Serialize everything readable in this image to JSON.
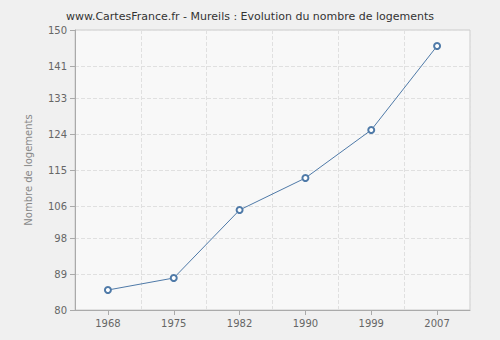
{
  "chart_data": {
    "type": "line",
    "title": "www.CartesFrance.fr - Mureils : Evolution du nombre de logements",
    "ylabel": "Nombre de logements",
    "categories": [
      "1968",
      "1975",
      "1982",
      "1990",
      "1999",
      "2007"
    ],
    "values": [
      85,
      88,
      105,
      113,
      125,
      146
    ],
    "color": "#4f7aa8",
    "marker": "circle",
    "ylim": [
      80,
      150
    ],
    "yticks": [
      80,
      89,
      98,
      106,
      115,
      124,
      133,
      141,
      150
    ],
    "grid": true
  }
}
